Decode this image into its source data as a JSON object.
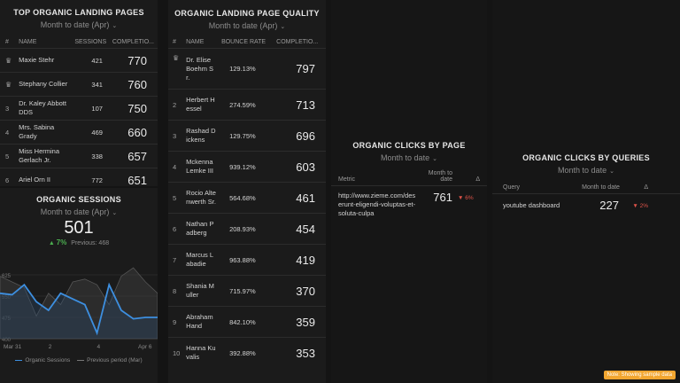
{
  "top_pages": {
    "title": "TOP ORGANIC LANDING PAGES",
    "period": "Month to date (Apr)",
    "headers": [
      "#",
      "NAME",
      "SESSIONS",
      "COMPLETIO..."
    ],
    "rows": [
      {
        "rank": "",
        "name": "Maxie Stehr",
        "sessions": "421",
        "completions": "770"
      },
      {
        "rank": "",
        "name": "Stephany Collier",
        "sessions": "341",
        "completions": "760"
      },
      {
        "rank": "3",
        "name": "Dr. Kaley Abbott DDS",
        "sessions": "107",
        "completions": "750"
      },
      {
        "rank": "4",
        "name": "Mrs. Sabina Grady",
        "sessions": "469",
        "completions": "660"
      },
      {
        "rank": "5",
        "name": "Miss Hermina Gerlach Jr.",
        "sessions": "338",
        "completions": "657"
      },
      {
        "rank": "6",
        "name": "Ariel Orn II",
        "sessions": "772",
        "completions": "651"
      }
    ]
  },
  "sessions": {
    "title": "ORGANIC SESSIONS",
    "period": "Month to date (Apr)",
    "value": "501",
    "change": "7%",
    "previous": "Previous: 468",
    "legend_current": "Organic Sessions",
    "legend_previous": "Previous period (Mar)",
    "color_current": "#3d8fe0"
  },
  "chart_data": {
    "type": "line",
    "x_ticks": [
      "Mar 31",
      "2",
      "4",
      "Apr 6"
    ],
    "y_ticks": [
      "625",
      "550",
      "475",
      "400"
    ],
    "ylim": [
      400,
      700
    ],
    "x": [
      0,
      0.5,
      1,
      1.5,
      2,
      2.5,
      3,
      3.5,
      4,
      4.5,
      5,
      5.5,
      6,
      6.5
    ],
    "series": [
      {
        "name": "Organic Sessions",
        "values": [
          560,
          555,
          590,
          530,
          500,
          560,
          540,
          520,
          420,
          590,
          500,
          470,
          475,
          475
        ]
      },
      {
        "name": "Previous period (Mar)",
        "values": [
          620,
          600,
          580,
          480,
          560,
          520,
          600,
          610,
          590,
          520,
          620,
          650,
          600,
          560
        ]
      }
    ]
  },
  "quality": {
    "title": "ORGANIC LANDING PAGE QUALITY",
    "period": "Month to date (Apr)",
    "headers": [
      "#",
      "NAME",
      "BOUNCE RATE",
      "COMPLETIO..."
    ],
    "rows": [
      {
        "rank": "",
        "name": "Dr. Elise Boehm Sr.",
        "bounce": "129.13%",
        "completions": "797"
      },
      {
        "rank": "2",
        "name": "Herbert Hessel",
        "bounce": "274.59%",
        "completions": "713"
      },
      {
        "rank": "3",
        "name": "Rashad Dickens",
        "bounce": "129.75%",
        "completions": "696"
      },
      {
        "rank": "4",
        "name": "Mckenna Lemke III",
        "bounce": "939.12%",
        "completions": "603"
      },
      {
        "rank": "5",
        "name": "Rocio Altenwerth Sr.",
        "bounce": "564.68%",
        "completions": "461"
      },
      {
        "rank": "6",
        "name": "Nathan Padberg",
        "bounce": "208.93%",
        "completions": "454"
      },
      {
        "rank": "7",
        "name": "Marcus Labadie",
        "bounce": "963.88%",
        "completions": "419"
      },
      {
        "rank": "8",
        "name": "Shania Muller",
        "bounce": "715.97%",
        "completions": "370"
      },
      {
        "rank": "9",
        "name": "Abraham Hand",
        "bounce": "842.10%",
        "completions": "359"
      },
      {
        "rank": "10",
        "name": "Hanna Kuvalis",
        "bounce": "392.88%",
        "completions": "353"
      }
    ]
  },
  "clicks_page": {
    "title": "ORGANIC CLICKS BY PAGE",
    "period": "Month to date",
    "headers": [
      "Metric",
      "Month to date",
      "Δ"
    ],
    "row": {
      "metric": "http://www.zieme.com/deserunt-eligendi-voluptas-et-soluta-culpa",
      "value": "761",
      "delta": "6%"
    }
  },
  "clicks_queries": {
    "title": "ORGANIC CLICKS BY QUERIES",
    "period": "Month to date",
    "headers": [
      "Query",
      "Month to date",
      "Δ"
    ],
    "row": {
      "query": "youtube dashboard",
      "value": "227",
      "delta": "2%"
    }
  },
  "sample_note": "Note: Showing sample data"
}
